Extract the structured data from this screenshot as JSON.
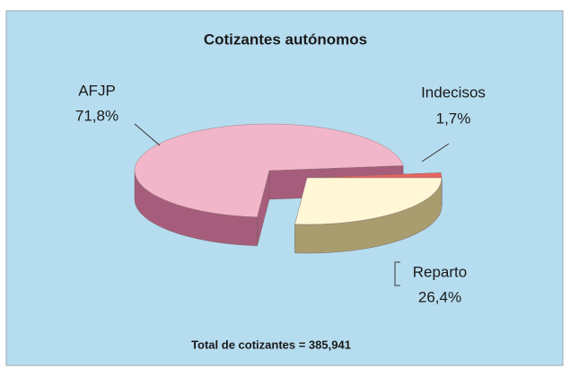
{
  "chart_data": {
    "type": "pie3d",
    "title": "Cotizantes autónomos",
    "categories": [
      "Reparto",
      "AFJP",
      "Indecisos"
    ],
    "values": [
      26.4,
      71.8,
      1.7
    ],
    "value_labels": [
      "26,4%",
      "71,8%",
      "1,7%"
    ],
    "colors": [
      "#fff7d6",
      "#f2b6ca",
      "#e8655f"
    ],
    "side_colors": [
      "#a99d6f",
      "#a65d7b",
      "#b53a38"
    ],
    "exploded": [
      true,
      false,
      true
    ],
    "note": "Total de cotizantes = 385,941"
  }
}
